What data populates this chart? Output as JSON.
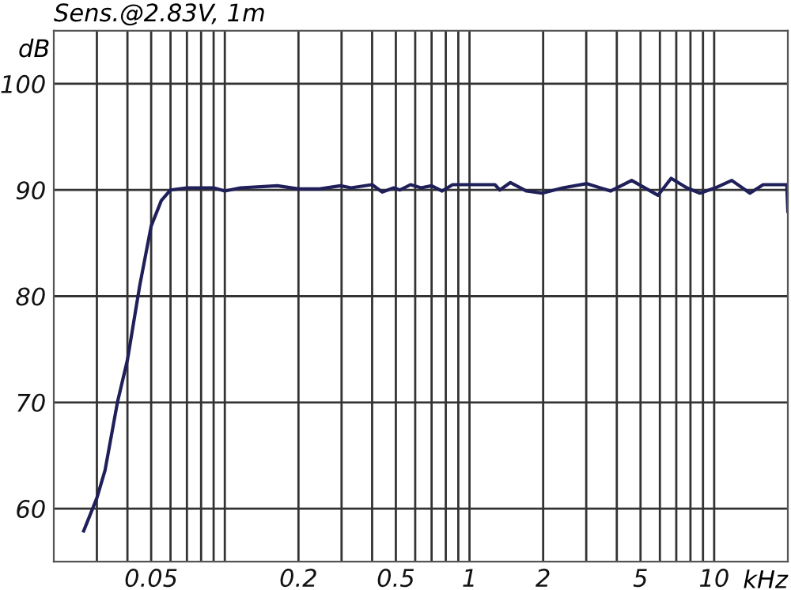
{
  "chart_data": {
    "type": "line",
    "title": "Sens.@2.83V, 1m",
    "xlabel": "kHz",
    "ylabel": "dB",
    "log": "x",
    "grid": true,
    "marker": "none",
    "line_style": "solid",
    "xlim": [
      0.02,
      20
    ],
    "ylim": [
      55,
      105
    ],
    "xticks": [
      {
        "value": 0.03,
        "label": null
      },
      {
        "value": 0.04,
        "label": null
      },
      0.05,
      {
        "value": 0.06,
        "label": null
      },
      {
        "value": 0.07,
        "label": null
      },
      {
        "value": 0.08,
        "label": null
      },
      {
        "value": 0.09,
        "label": null
      },
      {
        "value": 0.1,
        "label": null
      },
      0.2,
      {
        "value": 0.3,
        "label": null
      },
      {
        "value": 0.4,
        "label": null
      },
      0.5,
      {
        "value": 0.6,
        "label": null
      },
      {
        "value": 0.7,
        "label": null
      },
      {
        "value": 0.8,
        "label": null
      },
      {
        "value": 0.9,
        "label": null
      },
      1,
      2,
      {
        "value": 3,
        "label": null
      },
      {
        "value": 4,
        "label": null
      },
      5,
      {
        "value": 6,
        "label": null
      },
      {
        "value": 7,
        "label": null
      },
      {
        "value": 8,
        "label": null
      },
      {
        "value": 9,
        "label": null
      },
      10
    ],
    "yticks": [
      60,
      70,
      80,
      90,
      100
    ],
    "series": [
      {
        "color": "#1f1f5a",
        "x": [
          0.0265,
          0.03,
          0.0324,
          0.0364,
          0.04,
          0.0449,
          0.05,
          0.055,
          0.06,
          0.07,
          0.09,
          0.1,
          0.116,
          0.164,
          0.2,
          0.244,
          0.297,
          0.328,
          0.4,
          0.44,
          0.49,
          0.52,
          0.574,
          0.634,
          0.7,
          0.773,
          0.853,
          1.04,
          1.27,
          1.33,
          1.47,
          1.71,
          1.98,
          2.41,
          3.02,
          3.77,
          4.6,
          5.89,
          6.67,
          7.73,
          8.75,
          10.1,
          11.8,
          14.0,
          15.85,
          19.8,
          20
        ],
        "values": [
          57.9,
          61,
          63.6,
          70,
          74,
          81,
          86.6,
          89,
          90,
          90.2,
          90.2,
          89.9,
          90.2,
          90.4,
          90.1,
          90.1,
          90.4,
          90.2,
          90.5,
          89.8,
          90.2,
          90,
          90.5,
          90.2,
          90.4,
          89.9,
          90.5,
          90.5,
          90.5,
          90,
          90.7,
          89.9,
          89.7,
          90.2,
          90.6,
          89.9,
          90.9,
          89.5,
          91.1,
          90.2,
          89.7,
          90.2,
          90.9,
          89.7,
          90.5,
          90.5,
          88
        ]
      }
    ]
  }
}
